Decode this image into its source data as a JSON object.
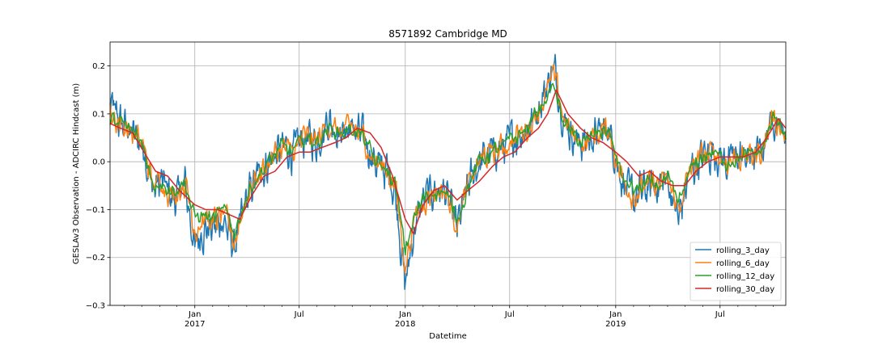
{
  "chart_data": {
    "type": "line",
    "title": "8571892 Cambridge MD",
    "xlabel": "Datetime",
    "ylabel": "GESLAv3 Observation - ADCIRC Hindcast (m)",
    "xlim": [
      "2016-08-07",
      "2019-10-23"
    ],
    "ylim": [
      -0.3,
      0.25
    ],
    "grid": true,
    "legend_position": "lower right",
    "y_ticks": [
      -0.3,
      -0.2,
      -0.1,
      0.0,
      0.1,
      0.2
    ],
    "y_tick_labels": [
      "−0.3",
      "−0.2",
      "−0.1",
      "0.0",
      "0.1",
      "0.2"
    ],
    "x_ticks": [
      {
        "date": "2017-01-01",
        "label": "Jan",
        "year": "2017",
        "major": true
      },
      {
        "date": "2017-07-01",
        "label": "Jul",
        "year": "",
        "major": true
      },
      {
        "date": "2018-01-01",
        "label": "Jan",
        "year": "2018",
        "major": true
      },
      {
        "date": "2018-07-01",
        "label": "Jul",
        "year": "",
        "major": true
      },
      {
        "date": "2019-01-01",
        "label": "Jan",
        "year": "2019",
        "major": true
      },
      {
        "date": "2019-07-01",
        "label": "Jul",
        "year": "",
        "major": true
      }
    ],
    "x_minor_ticks": [
      "2016-09-01",
      "2016-10-01",
      "2016-11-01",
      "2016-12-01",
      "2017-02-01",
      "2017-03-01",
      "2017-04-01",
      "2017-05-01",
      "2017-06-01",
      "2017-08-01",
      "2017-09-01",
      "2017-10-01",
      "2017-11-01",
      "2017-12-01",
      "2018-02-01",
      "2018-03-01",
      "2018-04-01",
      "2018-05-01",
      "2018-06-01",
      "2018-08-01",
      "2018-09-01",
      "2018-10-01",
      "2018-11-01",
      "2018-12-01",
      "2019-02-01",
      "2019-03-01",
      "2019-04-01",
      "2019-05-01",
      "2019-06-01",
      "2019-08-01",
      "2019-09-01",
      "2019-10-01"
    ],
    "series": [
      {
        "name": "rolling_3_day",
        "color": "#1f77b4",
        "jitter": 1.0,
        "x": [
          "2016-08-07",
          "2016-08-25",
          "2016-09-15",
          "2016-10-05",
          "2016-10-20",
          "2016-11-05",
          "2016-11-25",
          "2016-12-15",
          "2017-01-01",
          "2017-01-15",
          "2017-02-01",
          "2017-02-20",
          "2017-03-10",
          "2017-04-01",
          "2017-04-20",
          "2017-05-10",
          "2017-06-01",
          "2017-06-20",
          "2017-07-10",
          "2017-08-01",
          "2017-08-20",
          "2017-09-10",
          "2017-10-01",
          "2017-10-20",
          "2017-11-10",
          "2017-12-01",
          "2017-12-15",
          "2018-01-01",
          "2018-01-15",
          "2018-02-01",
          "2018-02-20",
          "2018-03-10",
          "2018-04-01",
          "2018-04-20",
          "2018-05-10",
          "2018-06-01",
          "2018-06-20",
          "2018-07-10",
          "2018-08-01",
          "2018-08-15",
          "2018-09-01",
          "2018-09-15",
          "2018-10-01",
          "2018-10-20",
          "2018-11-10",
          "2018-12-01",
          "2018-12-20",
          "2019-01-10",
          "2019-02-01",
          "2019-02-20",
          "2019-03-10",
          "2019-04-01",
          "2019-04-20",
          "2019-05-10",
          "2019-06-01",
          "2019-06-20",
          "2019-07-10",
          "2019-08-01",
          "2019-08-20",
          "2019-09-10",
          "2019-10-01",
          "2019-10-23"
        ],
        "y": [
          0.12,
          0.08,
          0.06,
          0.03,
          -0.06,
          -0.04,
          -0.08,
          -0.05,
          -0.18,
          -0.14,
          -0.14,
          -0.12,
          -0.18,
          -0.08,
          -0.03,
          0.0,
          0.03,
          0.02,
          0.05,
          0.04,
          0.09,
          0.06,
          0.07,
          0.05,
          0.0,
          -0.02,
          -0.06,
          -0.26,
          -0.15,
          -0.08,
          -0.06,
          -0.06,
          -0.14,
          -0.05,
          0.0,
          0.02,
          0.03,
          0.05,
          0.07,
          0.1,
          0.15,
          0.2,
          0.1,
          0.05,
          0.04,
          0.06,
          0.07,
          -0.03,
          -0.08,
          -0.06,
          -0.05,
          -0.04,
          -0.12,
          -0.02,
          0.01,
          0.02,
          0.0,
          0.01,
          0.01,
          0.02,
          0.1,
          0.05
        ]
      },
      {
        "name": "rolling_6_day",
        "color": "#ff7f0e",
        "jitter": 0.7,
        "x": [
          "2016-08-07",
          "2016-08-25",
          "2016-09-15",
          "2016-10-05",
          "2016-10-20",
          "2016-11-05",
          "2016-11-25",
          "2016-12-15",
          "2017-01-01",
          "2017-01-15",
          "2017-02-01",
          "2017-02-20",
          "2017-03-10",
          "2017-04-01",
          "2017-04-20",
          "2017-05-10",
          "2017-06-01",
          "2017-06-20",
          "2017-07-10",
          "2017-08-01",
          "2017-08-20",
          "2017-09-10",
          "2017-10-01",
          "2017-10-20",
          "2017-11-10",
          "2017-12-01",
          "2017-12-15",
          "2018-01-01",
          "2018-01-15",
          "2018-02-01",
          "2018-02-20",
          "2018-03-10",
          "2018-04-01",
          "2018-04-20",
          "2018-05-10",
          "2018-06-01",
          "2018-06-20",
          "2018-07-10",
          "2018-08-01",
          "2018-08-15",
          "2018-09-01",
          "2018-09-15",
          "2018-10-01",
          "2018-10-20",
          "2018-11-10",
          "2018-12-01",
          "2018-12-20",
          "2019-01-10",
          "2019-02-01",
          "2019-02-20",
          "2019-03-10",
          "2019-04-01",
          "2019-04-20",
          "2019-05-10",
          "2019-06-01",
          "2019-06-20",
          "2019-07-10",
          "2019-08-01",
          "2019-08-20",
          "2019-09-10",
          "2019-10-01",
          "2019-10-23"
        ],
        "y": [
          0.1,
          0.08,
          0.06,
          0.03,
          -0.05,
          -0.04,
          -0.07,
          -0.04,
          -0.14,
          -0.12,
          -0.13,
          -0.11,
          -0.17,
          -0.07,
          -0.03,
          0.0,
          0.03,
          0.02,
          0.05,
          0.04,
          0.08,
          0.06,
          0.07,
          0.05,
          0.0,
          -0.02,
          -0.05,
          -0.22,
          -0.13,
          -0.08,
          -0.06,
          -0.06,
          -0.13,
          -0.05,
          0.0,
          0.02,
          0.03,
          0.05,
          0.07,
          0.1,
          0.14,
          0.18,
          0.1,
          0.05,
          0.04,
          0.06,
          0.07,
          -0.03,
          -0.07,
          -0.05,
          -0.05,
          -0.04,
          -0.1,
          -0.02,
          0.01,
          0.02,
          0.0,
          0.01,
          0.01,
          0.02,
          0.1,
          0.05
        ]
      },
      {
        "name": "rolling_12_day",
        "color": "#2ca02c",
        "jitter": 0.45,
        "x": [
          "2016-08-07",
          "2016-08-25",
          "2016-09-15",
          "2016-10-05",
          "2016-10-20",
          "2016-11-05",
          "2016-11-25",
          "2016-12-15",
          "2017-01-01",
          "2017-01-15",
          "2017-02-01",
          "2017-02-20",
          "2017-03-10",
          "2017-04-01",
          "2017-04-20",
          "2017-05-10",
          "2017-06-01",
          "2017-06-20",
          "2017-07-10",
          "2017-08-01",
          "2017-08-20",
          "2017-09-10",
          "2017-10-01",
          "2017-10-20",
          "2017-11-10",
          "2017-12-01",
          "2017-12-15",
          "2018-01-01",
          "2018-01-15",
          "2018-02-01",
          "2018-02-20",
          "2018-03-10",
          "2018-04-01",
          "2018-04-20",
          "2018-05-10",
          "2018-06-01",
          "2018-06-20",
          "2018-07-10",
          "2018-08-01",
          "2018-08-15",
          "2018-09-01",
          "2018-09-15",
          "2018-10-01",
          "2018-10-20",
          "2018-11-10",
          "2018-12-01",
          "2018-12-20",
          "2019-01-10",
          "2019-02-01",
          "2019-02-20",
          "2019-03-10",
          "2019-04-01",
          "2019-04-20",
          "2019-05-10",
          "2019-06-01",
          "2019-06-20",
          "2019-07-10",
          "2019-08-01",
          "2019-08-20",
          "2019-09-10",
          "2019-10-01",
          "2019-10-23"
        ],
        "y": [
          0.09,
          0.08,
          0.06,
          0.03,
          -0.05,
          -0.04,
          -0.06,
          -0.04,
          -0.12,
          -0.11,
          -0.12,
          -0.1,
          -0.15,
          -0.07,
          -0.03,
          0.0,
          0.03,
          0.02,
          0.05,
          0.04,
          0.07,
          0.06,
          0.07,
          0.05,
          0.0,
          -0.02,
          -0.05,
          -0.19,
          -0.12,
          -0.08,
          -0.06,
          -0.06,
          -0.12,
          -0.05,
          0.0,
          0.02,
          0.03,
          0.05,
          0.07,
          0.1,
          0.13,
          0.16,
          0.09,
          0.05,
          0.04,
          0.06,
          0.07,
          -0.03,
          -0.06,
          -0.05,
          -0.05,
          -0.04,
          -0.09,
          -0.02,
          0.01,
          0.02,
          0.0,
          0.01,
          0.01,
          0.02,
          0.09,
          0.06
        ]
      },
      {
        "name": "rolling_30_day",
        "color": "#d62728",
        "jitter": 0.0,
        "x": [
          "2016-08-07",
          "2016-08-25",
          "2016-09-15",
          "2016-10-05",
          "2016-10-25",
          "2016-11-15",
          "2016-12-05",
          "2017-01-01",
          "2017-01-20",
          "2017-02-10",
          "2017-03-01",
          "2017-03-20",
          "2017-04-10",
          "2017-05-01",
          "2017-05-20",
          "2017-06-10",
          "2017-07-01",
          "2017-07-20",
          "2017-08-10",
          "2017-09-01",
          "2017-09-20",
          "2017-10-10",
          "2017-11-01",
          "2017-11-20",
          "2017-12-10",
          "2018-01-01",
          "2018-01-15",
          "2018-02-01",
          "2018-02-20",
          "2018-03-10",
          "2018-04-01",
          "2018-04-20",
          "2018-05-10",
          "2018-06-01",
          "2018-06-20",
          "2018-07-10",
          "2018-08-01",
          "2018-08-20",
          "2018-09-05",
          "2018-09-20",
          "2018-10-10",
          "2018-11-01",
          "2018-11-20",
          "2018-12-10",
          "2019-01-01",
          "2019-01-20",
          "2019-02-10",
          "2019-03-01",
          "2019-03-20",
          "2019-04-10",
          "2019-05-01",
          "2019-05-20",
          "2019-06-10",
          "2019-07-01",
          "2019-07-20",
          "2019-08-10",
          "2019-09-01",
          "2019-09-20",
          "2019-10-10",
          "2019-10-23"
        ],
        "y": [
          0.08,
          0.07,
          0.06,
          0.02,
          -0.02,
          -0.03,
          -0.06,
          -0.09,
          -0.1,
          -0.1,
          -0.11,
          -0.12,
          -0.07,
          -0.03,
          -0.02,
          0.01,
          0.02,
          0.02,
          0.03,
          0.04,
          0.05,
          0.07,
          0.06,
          0.03,
          -0.03,
          -0.12,
          -0.15,
          -0.09,
          -0.06,
          -0.05,
          -0.08,
          -0.06,
          -0.04,
          -0.01,
          0.01,
          0.02,
          0.05,
          0.07,
          0.1,
          0.15,
          0.1,
          0.07,
          0.05,
          0.04,
          0.02,
          0.0,
          -0.03,
          -0.02,
          -0.04,
          -0.05,
          -0.05,
          -0.02,
          0.0,
          0.01,
          0.01,
          0.01,
          0.02,
          0.05,
          0.09,
          0.07
        ]
      }
    ]
  }
}
